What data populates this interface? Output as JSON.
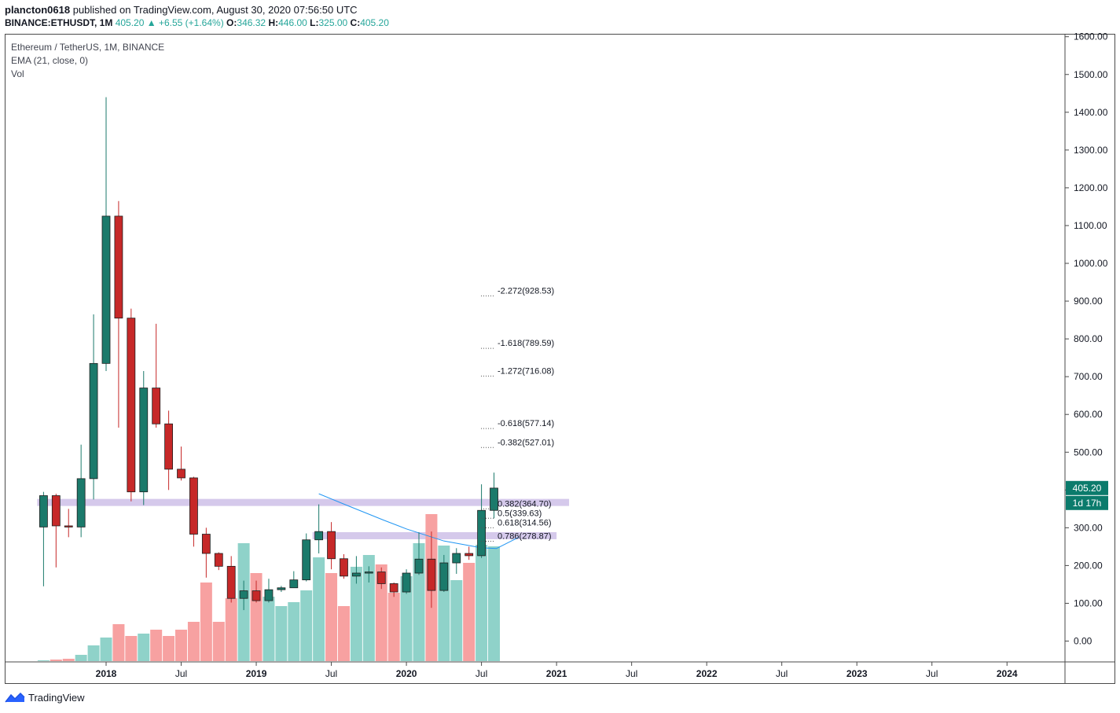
{
  "header": {
    "user": "plancton0618",
    "published": "published on TradingView.com, August 30, 2020 07:56:50 UTC",
    "symbol": "BINANCE:ETHUSDT, 1M",
    "last": "405.20",
    "change": "+6.55 (+1.64%)",
    "o_label": "O:",
    "o": "346.32",
    "h_label": "H:",
    "h": "446.00",
    "l_label": "L:",
    "l": "325.00",
    "c_label": "C:",
    "c": "405.20"
  },
  "legend": {
    "title": "Ethereum / TetherUS, 1M, BINANCE",
    "ema": "EMA (21, close, 0)",
    "vol": "Vol"
  },
  "badges": {
    "price": "405.20",
    "countdown": "1d 17h"
  },
  "footer": {
    "brand": "TradingView"
  },
  "colors": {
    "up": "#26a69a",
    "down": "#ef5350",
    "up_vol": "#8fd2c9",
    "down_vol": "#f7a1a1",
    "ema": "#2196f3",
    "zone": "#b39ddb",
    "candle_up": "#1b7a6b",
    "candle_down": "#c62828"
  },
  "chart_data": {
    "type": "candlestick",
    "timeframe": "1M",
    "y_axis": {
      "range": [
        -50,
        1650
      ],
      "ticks": [
        "1600.00",
        "1500.00",
        "1400.00",
        "1300.00",
        "1200.00",
        "1100.00",
        "1000.00",
        "900.00",
        "800.00",
        "700.00",
        "600.00",
        "500.00",
        "400.00",
        "300.00",
        "200.00",
        "100.00",
        "0.00"
      ]
    },
    "x_axis": {
      "labels": [
        "2018",
        "Jul",
        "2019",
        "Jul",
        "2020",
        "Jul",
        "2021",
        "Jul",
        "2022",
        "Jul",
        "2023",
        "Jul",
        "2024"
      ]
    },
    "candles": [
      {
        "m": "2017-08",
        "o": 302,
        "h": 395,
        "l": 145,
        "c": 385
      },
      {
        "m": "2017-09",
        "o": 385,
        "h": 390,
        "l": 195,
        "c": 305
      },
      {
        "m": "2017-10",
        "o": 305,
        "h": 350,
        "l": 275,
        "c": 302
      },
      {
        "m": "2017-11",
        "o": 302,
        "h": 520,
        "l": 275,
        "c": 430
      },
      {
        "m": "2017-12",
        "o": 430,
        "h": 865,
        "l": 375,
        "c": 735
      },
      {
        "m": "2018-01",
        "o": 735,
        "h": 1440,
        "l": 715,
        "c": 1125
      },
      {
        "m": "2018-02",
        "o": 1125,
        "h": 1165,
        "l": 565,
        "c": 855
      },
      {
        "m": "2018-03",
        "o": 855,
        "h": 880,
        "l": 370,
        "c": 395
      },
      {
        "m": "2018-04",
        "o": 395,
        "h": 715,
        "l": 360,
        "c": 670
      },
      {
        "m": "2018-05",
        "o": 670,
        "h": 840,
        "l": 565,
        "c": 575
      },
      {
        "m": "2018-06",
        "o": 575,
        "h": 610,
        "l": 400,
        "c": 455
      },
      {
        "m": "2018-07",
        "o": 455,
        "h": 515,
        "l": 425,
        "c": 432
      },
      {
        "m": "2018-08",
        "o": 432,
        "h": 435,
        "l": 250,
        "c": 283
      },
      {
        "m": "2018-09",
        "o": 283,
        "h": 300,
        "l": 168,
        "c": 232
      },
      {
        "m": "2018-10",
        "o": 232,
        "h": 235,
        "l": 188,
        "c": 198
      },
      {
        "m": "2018-11",
        "o": 198,
        "h": 225,
        "l": 102,
        "c": 113
      },
      {
        "m": "2018-12",
        "o": 113,
        "h": 160,
        "l": 82,
        "c": 133
      },
      {
        "m": "2019-01",
        "o": 133,
        "h": 160,
        "l": 102,
        "c": 107
      },
      {
        "m": "2019-02",
        "o": 107,
        "h": 165,
        "l": 102,
        "c": 136
      },
      {
        "m": "2019-03",
        "o": 136,
        "h": 146,
        "l": 130,
        "c": 141
      },
      {
        "m": "2019-04",
        "o": 141,
        "h": 185,
        "l": 145,
        "c": 162
      },
      {
        "m": "2019-05",
        "o": 162,
        "h": 285,
        "l": 158,
        "c": 268
      },
      {
        "m": "2019-06",
        "o": 268,
        "h": 362,
        "l": 232,
        "c": 290
      },
      {
        "m": "2019-07",
        "o": 290,
        "h": 315,
        "l": 190,
        "c": 218
      },
      {
        "m": "2019-08",
        "o": 218,
        "h": 230,
        "l": 165,
        "c": 172
      },
      {
        "m": "2019-09",
        "o": 172,
        "h": 225,
        "l": 152,
        "c": 180
      },
      {
        "m": "2019-10",
        "o": 180,
        "h": 198,
        "l": 155,
        "c": 183
      },
      {
        "m": "2019-11",
        "o": 183,
        "h": 195,
        "l": 138,
        "c": 152
      },
      {
        "m": "2019-12",
        "o": 152,
        "h": 155,
        "l": 117,
        "c": 130
      },
      {
        "m": "2020-01",
        "o": 130,
        "h": 190,
        "l": 125,
        "c": 180
      },
      {
        "m": "2020-02",
        "o": 180,
        "h": 288,
        "l": 175,
        "c": 217
      },
      {
        "m": "2020-03",
        "o": 217,
        "h": 290,
        "l": 88,
        "c": 134
      },
      {
        "m": "2020-04",
        "o": 134,
        "h": 228,
        "l": 130,
        "c": 207
      },
      {
        "m": "2020-05",
        "o": 207,
        "h": 246,
        "l": 178,
        "c": 232
      },
      {
        "m": "2020-06",
        "o": 232,
        "h": 250,
        "l": 215,
        "c": 226
      },
      {
        "m": "2020-07",
        "o": 226,
        "h": 415,
        "l": 220,
        "c": 346
      },
      {
        "m": "2020-08",
        "o": 346,
        "h": 446,
        "l": 325,
        "c": 405
      }
    ],
    "volume_series": {
      "name": "Vol",
      "values": [
        1,
        2,
        3,
        8,
        20,
        30,
        47,
        32,
        35,
        40,
        32,
        40,
        50,
        100,
        50,
        80,
        150,
        112,
        82,
        70,
        75,
        90,
        132,
        112,
        70,
        120,
        135,
        123,
        87,
        108,
        150,
        187,
        147,
        103,
        125,
        148,
        146
      ]
    },
    "ema_series": {
      "name": "EMA (21, close, 0)",
      "points": [
        [
          2019.417,
          390
        ],
        [
          2019.6,
          360
        ],
        [
          2019.85,
          320
        ],
        [
          2020.0,
          297
        ],
        [
          2020.25,
          265
        ],
        [
          2020.5,
          247
        ],
        [
          2020.6,
          245
        ],
        [
          2020.75,
          275
        ]
      ]
    },
    "fibonacci_levels": [
      {
        "label": "-2.272(928.53)",
        "value": 928.53
      },
      {
        "label": "-1.618(789.59)",
        "value": 789.59
      },
      {
        "label": "-1.272(716.08)",
        "value": 716.08
      },
      {
        "label": "-0.618(577.14)",
        "value": 577.14
      },
      {
        "label": "-0.382(527.01)",
        "value": 527.01
      },
      {
        "label": "0.382(364.70)",
        "value": 364.7
      },
      {
        "label": "0.5(339.63)",
        "value": 339.63
      },
      {
        "label": "0.618(314.56)",
        "value": 314.56
      },
      {
        "label": "0.786(278.87)",
        "value": 278.87
      }
    ],
    "zones": [
      {
        "name": "resistance-zone",
        "value": 367,
        "from": "2017-08",
        "to": "2021-02"
      },
      {
        "name": "support-zone",
        "value": 279,
        "from": "2019-06",
        "to": "2021-01"
      }
    ],
    "last_price": 405.2
  }
}
